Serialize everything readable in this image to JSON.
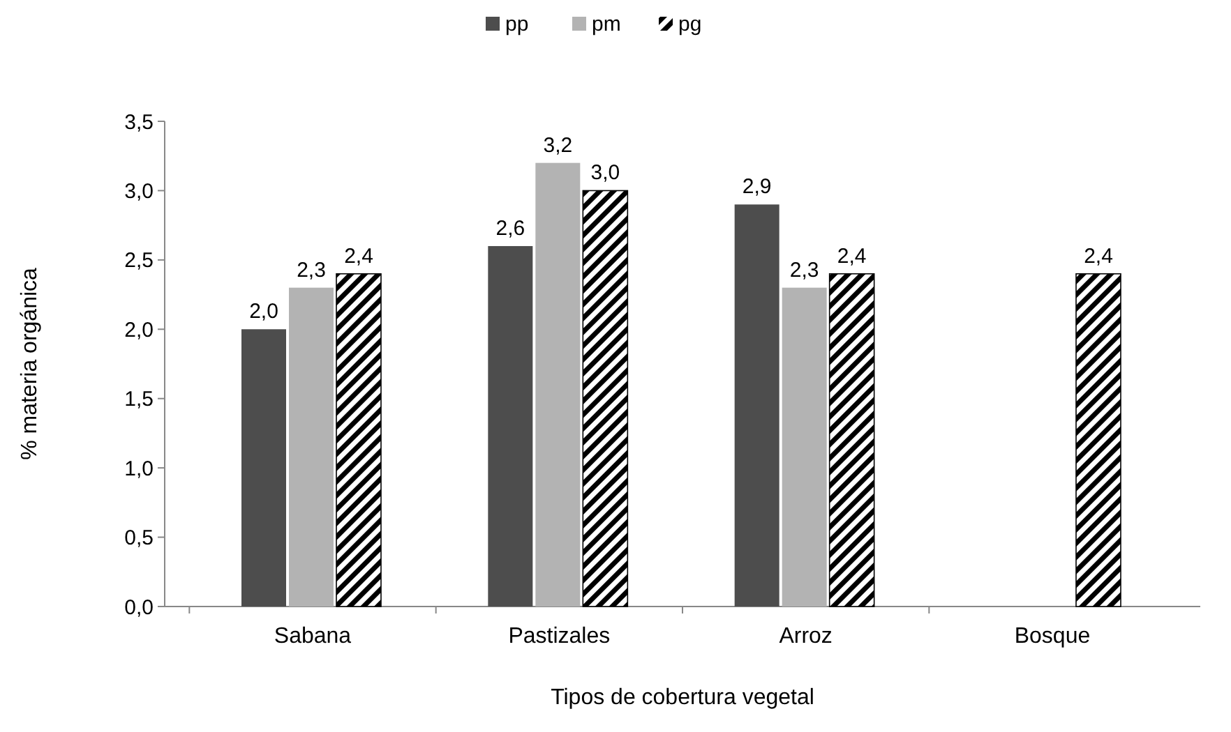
{
  "chart_data": {
    "type": "bar",
    "xlabel": "Tipos de cobertura vegetal",
    "ylabel": "% materia orgánica",
    "categories": [
      "Sabana",
      "Pastizales",
      "Arroz",
      "Bosque"
    ],
    "series": [
      {
        "name": "pp",
        "color": "#4d4d4d",
        "values": [
          2.0,
          2.6,
          2.9,
          null
        ],
        "value_labels": [
          "2,0",
          "2,6",
          "2,9",
          null
        ]
      },
      {
        "name": "pm",
        "color": "#b3b3b3",
        "values": [
          2.3,
          3.2,
          2.3,
          null
        ],
        "value_labels": [
          "2,3",
          "3,2",
          "2,3",
          null
        ]
      },
      {
        "name": "pg",
        "color": "#000000",
        "values": [
          2.4,
          3.0,
          2.4,
          2.4
        ],
        "value_labels": [
          "2,4",
          "3,0",
          "2,4",
          "2,4"
        ]
      }
    ],
    "ylim": [
      0,
      3.5
    ],
    "yticks": [
      {
        "value": 0,
        "label": "0,0"
      },
      {
        "value": 0.5,
        "label": "0,5"
      },
      {
        "value": 1,
        "label": "1,0"
      },
      {
        "value": 1.5,
        "label": "1,5"
      },
      {
        "value": 2,
        "label": "2,0"
      },
      {
        "value": 2.5,
        "label": "2,5"
      },
      {
        "value": 3,
        "label": "3,0"
      },
      {
        "value": 3.5,
        "label": "3,5"
      }
    ],
    "grid": false,
    "legend": "top"
  }
}
